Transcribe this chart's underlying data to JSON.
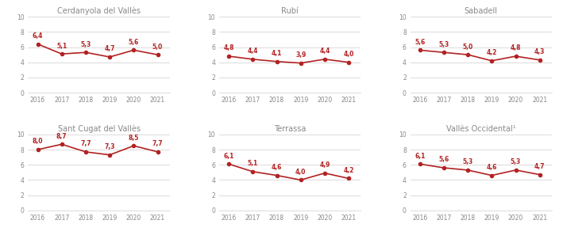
{
  "charts": [
    {
      "title": "Cerdanyola del Vallès",
      "years": [
        2016,
        2017,
        2018,
        2019,
        2020,
        2021
      ],
      "values": [
        6.4,
        5.1,
        5.3,
        4.7,
        5.6,
        5.0
      ]
    },
    {
      "title": "Rubí",
      "years": [
        2016,
        2017,
        2018,
        2019,
        2020,
        2021
      ],
      "values": [
        4.8,
        4.4,
        4.1,
        3.9,
        4.4,
        4.0
      ]
    },
    {
      "title": "Sabadell",
      "years": [
        2016,
        2017,
        2018,
        2019,
        2020,
        2021
      ],
      "values": [
        5.6,
        5.3,
        5.0,
        4.2,
        4.8,
        4.3
      ]
    },
    {
      "title": "Sant Cugat del Vallès",
      "years": [
        2016,
        2017,
        2018,
        2019,
        2020,
        2021
      ],
      "values": [
        8.0,
        8.7,
        7.7,
        7.3,
        8.5,
        7.7
      ]
    },
    {
      "title": "Terrassa",
      "years": [
        2016,
        2017,
        2018,
        2019,
        2020,
        2021
      ],
      "values": [
        6.1,
        5.1,
        4.6,
        4.0,
        4.9,
        4.2
      ]
    },
    {
      "title": "Vallès Occidental¹",
      "years": [
        2016,
        2017,
        2018,
        2019,
        2020,
        2021
      ],
      "values": [
        6.1,
        5.6,
        5.3,
        4.6,
        5.3,
        4.7
      ]
    }
  ],
  "line_color": "#b22222",
  "marker_color": "#b22222",
  "label_color": "#b22222",
  "title_color": "#888888",
  "tick_color": "#888888",
  "grid_color": "#cccccc",
  "ylim": [
    0,
    10
  ],
  "yticks": [
    0,
    2,
    4,
    6,
    8,
    10
  ],
  "label_fontsize": 5.5,
  "title_fontsize": 7.0,
  "tick_fontsize": 5.5,
  "figsize": [
    7.09,
    3.02
  ],
  "dpi": 100
}
